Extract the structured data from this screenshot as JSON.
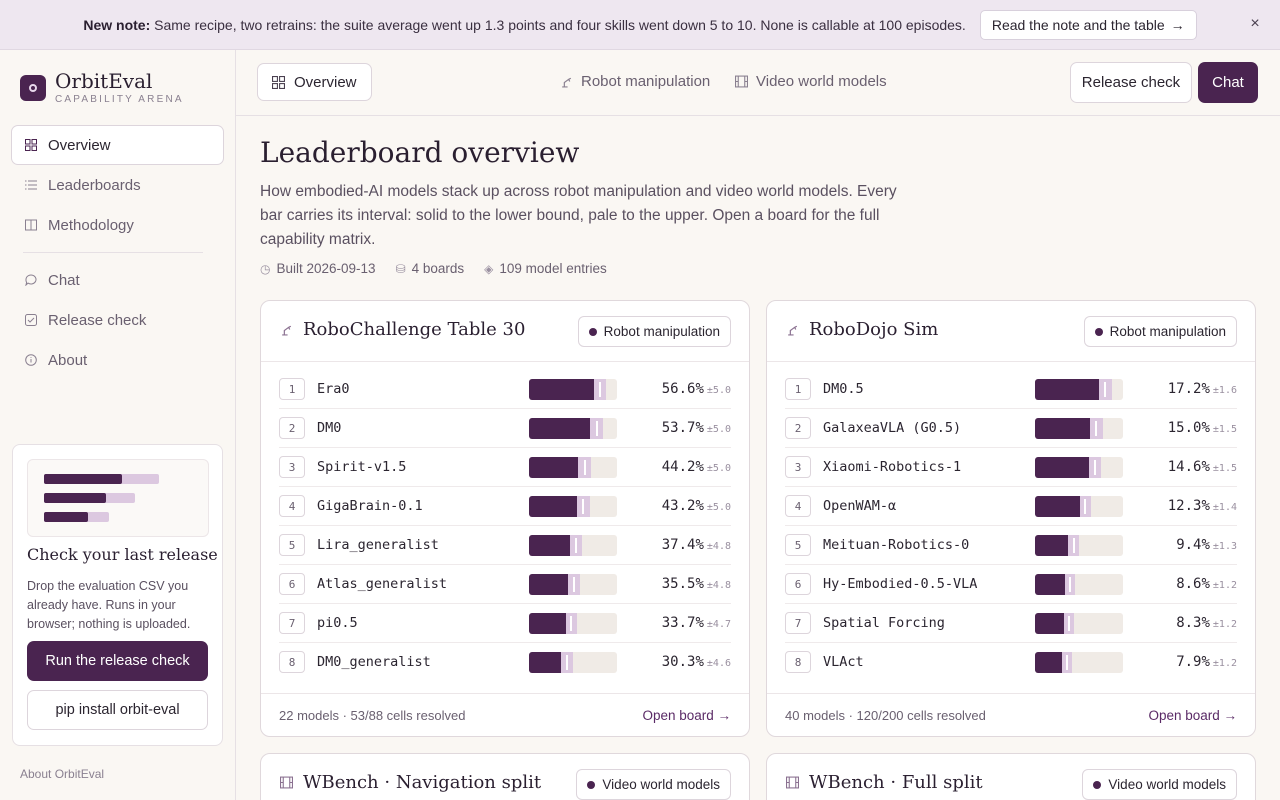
{
  "banner": {
    "lead": "New note:",
    "text": "Same recipe, two retrains: the suite average went up 1.3 points and four skills went down 5 to 10. None is callable at 100 episodes.",
    "button": "Read the note and the table",
    "close": "×"
  },
  "brand": {
    "name": "OrbitEval",
    "sub": "CAPABILITY ARENA"
  },
  "sidebar": {
    "items": [
      {
        "label": "Overview",
        "icon": "grid-icon"
      },
      {
        "label": "Leaderboards",
        "icon": "list-icon"
      },
      {
        "label": "Methodology",
        "icon": "book-icon"
      },
      {
        "label": "Chat",
        "icon": "chat-icon"
      },
      {
        "label": "Release check",
        "icon": "check-square-icon"
      },
      {
        "label": "About",
        "icon": "info-icon"
      }
    ],
    "release_card": {
      "title": "Check your last release",
      "text": "Drop the evaluation CSV you already have. Runs in your browser; nothing is uploaded.",
      "button": "Run the release check",
      "pip": "pip install orbit-eval"
    },
    "about": "About OrbitEval"
  },
  "topbar": {
    "overview": "Overview",
    "tab_robot": "Robot manipulation",
    "tab_video": "Video world models",
    "release": "Release check",
    "chat": "Chat"
  },
  "main": {
    "title": "Leaderboard overview",
    "description": "How embodied-AI models stack up across robot manipulation and video world models. Every bar carries its interval: solid to the lower bound, pale to the upper. Open a board for the full capability matrix.",
    "built": "Built 2026-09-13",
    "boards_count": "4 boards",
    "entries": "109 model entries"
  },
  "boards": [
    {
      "title": "RoboChallenge Table 30",
      "tag": "Robot manipulation",
      "footer": "22 models · 53/88 cells resolved",
      "open": "Open board →",
      "rows": [
        {
          "rank": "1",
          "name": "Era0",
          "score": "56.6%",
          "ci": "±5.0",
          "value": 56.6,
          "err": 5.0
        },
        {
          "rank": "2",
          "name": "DM0",
          "score": "53.7%",
          "ci": "±5.0",
          "value": 53.7,
          "err": 5.0
        },
        {
          "rank": "3",
          "name": "Spirit-v1.5",
          "score": "44.2%",
          "ci": "±5.0",
          "value": 44.2,
          "err": 5.0
        },
        {
          "rank": "4",
          "name": "GigaBrain-0.1",
          "score": "43.2%",
          "ci": "±5.0",
          "value": 43.2,
          "err": 5.0
        },
        {
          "rank": "5",
          "name": "Lira_generalist",
          "score": "37.4%",
          "ci": "±4.8",
          "value": 37.4,
          "err": 4.8
        },
        {
          "rank": "6",
          "name": "Atlas_generalist",
          "score": "35.5%",
          "ci": "±4.8",
          "value": 35.5,
          "err": 4.8
        },
        {
          "rank": "7",
          "name": "pi0.5",
          "score": "33.7%",
          "ci": "±4.7",
          "value": 33.7,
          "err": 4.7
        },
        {
          "rank": "8",
          "name": "DM0_generalist",
          "score": "30.3%",
          "ci": "±4.6",
          "value": 30.3,
          "err": 4.6
        }
      ]
    },
    {
      "title": "RoboDojo Sim",
      "tag": "Robot manipulation",
      "footer": "40 models · 120/200 cells resolved",
      "open": "Open board →",
      "rows": [
        {
          "rank": "1",
          "name": "DM0.5",
          "score": "17.2%",
          "ci": "±1.6",
          "value": 17.2,
          "err": 1.6
        },
        {
          "rank": "2",
          "name": "GalaxeaVLA (G0.5)",
          "score": "15.0%",
          "ci": "±1.5",
          "value": 15.0,
          "err": 1.5
        },
        {
          "rank": "3",
          "name": "Xiaomi-Robotics-1",
          "score": "14.6%",
          "ci": "±1.5",
          "value": 14.6,
          "err": 1.5
        },
        {
          "rank": "4",
          "name": "OpenWAM-α",
          "score": "12.3%",
          "ci": "±1.4",
          "value": 12.3,
          "err": 1.4
        },
        {
          "rank": "5",
          "name": "Meituan-Robotics-0",
          "score": "9.4%",
          "ci": "±1.3",
          "value": 9.4,
          "err": 1.3
        },
        {
          "rank": "6",
          "name": "Hy-Embodied-0.5-VLA",
          "score": "8.6%",
          "ci": "±1.2",
          "value": 8.6,
          "err": 1.2
        },
        {
          "rank": "7",
          "name": "Spatial Forcing",
          "score": "8.3%",
          "ci": "±1.2",
          "value": 8.3,
          "err": 1.2
        },
        {
          "rank": "8",
          "name": "VLAct",
          "score": "7.9%",
          "ci": "±1.2",
          "value": 7.9,
          "err": 1.2
        }
      ]
    },
    {
      "title": "WBench · Navigation split",
      "tag": "Video world models"
    },
    {
      "title": "WBench · Full split",
      "tag": "Video world models"
    }
  ]
}
